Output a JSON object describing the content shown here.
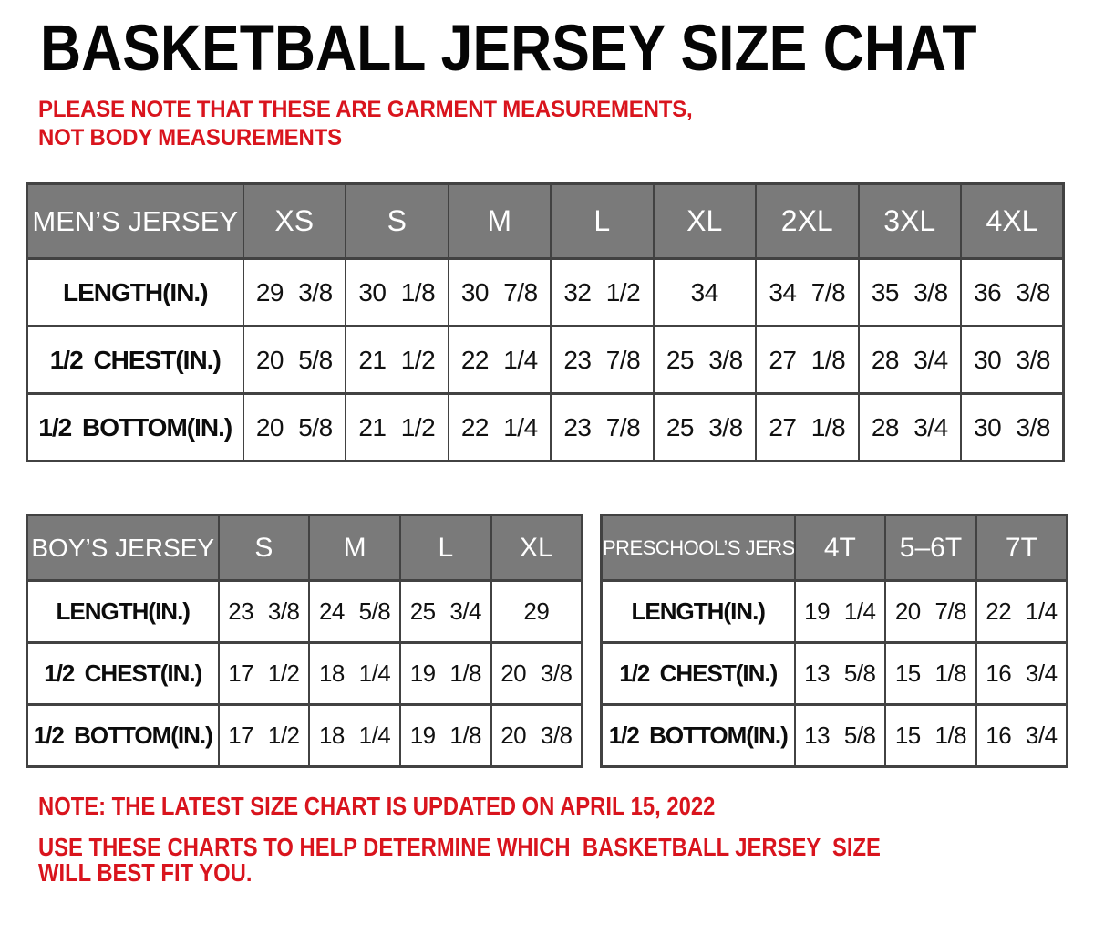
{
  "header": {
    "title": "BASKETBALL JERSEY SIZE CHAT",
    "garment_note": "PLEASE NOTE THAT THESE ARE GARMENT MEASUREMENTS, NOT BODY MEASUREMENTS"
  },
  "tables": {
    "mens": {
      "title": "MEN’S JERSEY",
      "sizes": [
        "XS",
        "S",
        "M",
        "L",
        "XL",
        "2XL",
        "3XL",
        "4XL"
      ],
      "rows": [
        {
          "label": "LENGTH(IN.)",
          "values": [
            "29 3/8",
            "30 1/8",
            "30 7/8",
            "32 1/2",
            "34",
            "34 7/8",
            "35 3/8",
            "36 3/8"
          ]
        },
        {
          "label": "1/2 CHEST(IN.)",
          "values": [
            "20 5/8",
            "21 1/2",
            "22 1/4",
            "23 7/8",
            "25 3/8",
            "27 1/8",
            "28 3/4",
            "30 3/8"
          ]
        },
        {
          "label": "1/2 BOTTOM(IN.)",
          "values": [
            "20 5/8",
            "21 1/2",
            "22 1/4",
            "23 7/8",
            "25 3/8",
            "27 1/8",
            "28 3/4",
            "30 3/8"
          ]
        }
      ]
    },
    "boys": {
      "title": "BOY’S JERSEY",
      "sizes": [
        "S",
        "M",
        "L",
        "XL"
      ],
      "rows": [
        {
          "label": "LENGTH(IN.)",
          "values": [
            "23 3/8",
            "24 5/8",
            "25 3/4",
            "29"
          ]
        },
        {
          "label": "1/2 CHEST(IN.)",
          "values": [
            "17 1/2",
            "18 1/4",
            "19 1/8",
            "20 3/8"
          ]
        },
        {
          "label": "1/2 BOTTOM(IN.)",
          "values": [
            "17 1/2",
            "18 1/4",
            "19 1/8",
            "20 3/8"
          ]
        }
      ]
    },
    "preschool": {
      "title": "PRESCHOOL’S JERSEY",
      "sizes": [
        "4T",
        "5–6T",
        "7T"
      ],
      "rows": [
        {
          "label": "LENGTH(IN.)",
          "values": [
            "19 1/4",
            "20 7/8",
            "22 1/4"
          ]
        },
        {
          "label": "1/2 CHEST(IN.)",
          "values": [
            "13 5/8",
            "15 1/8",
            "16 3/4"
          ]
        },
        {
          "label": "1/2 BOTTOM(IN.)",
          "values": [
            "13 5/8",
            "15 1/8",
            "16 3/4"
          ]
        }
      ]
    }
  },
  "footnotes": {
    "updated": "NOTE: THE LATEST SIZE CHART IS UPDATED ON APRIL 15, 2022",
    "usage": "USE THESE CHARTS TO HELP DETERMINE WHICH  BASKETBALL JERSEY  SIZE WILL BEST FIT YOU."
  },
  "colors": {
    "accent_red": "#d9141d",
    "table_header_bg": "#7a7a7a",
    "table_border": "#424242",
    "text_black": "#0a0a0a"
  }
}
